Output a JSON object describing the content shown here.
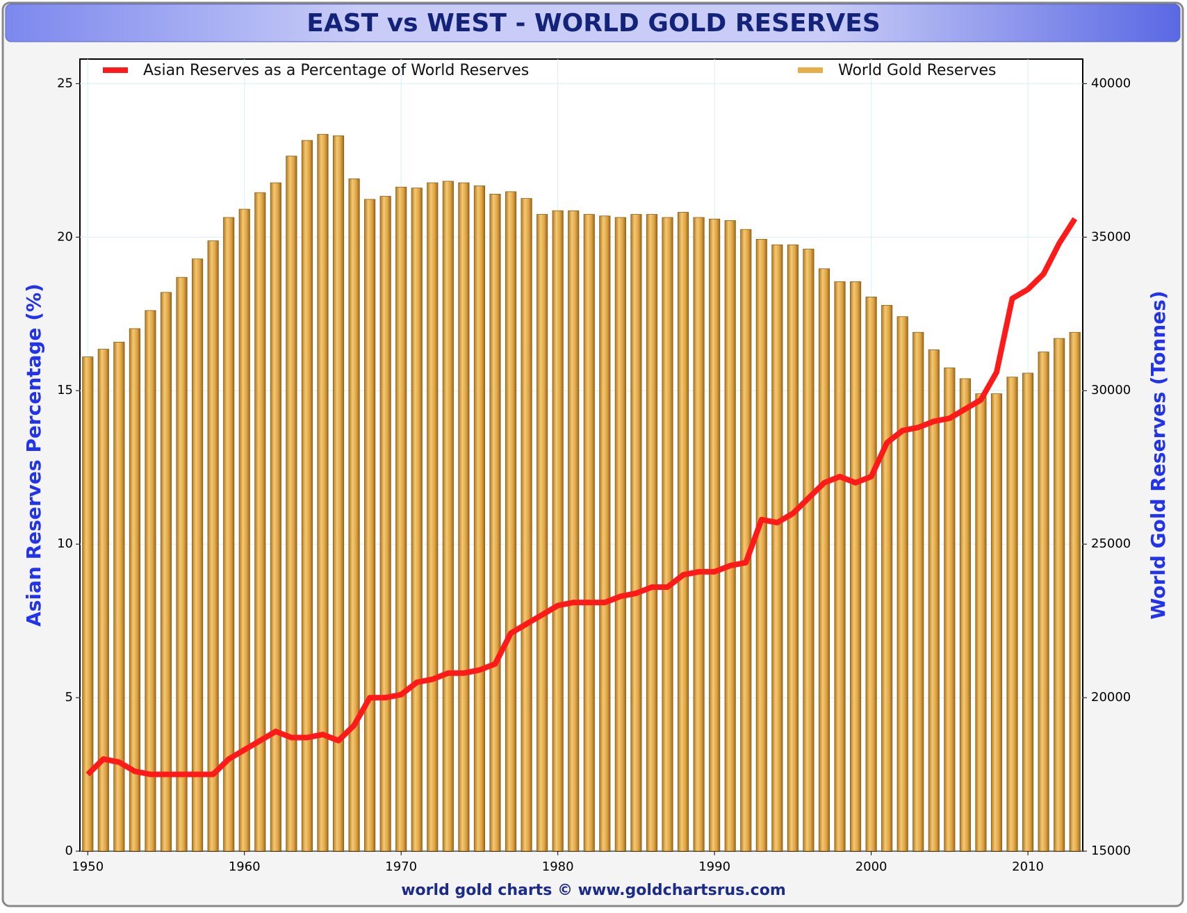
{
  "chart_data": {
    "type": "bar",
    "title": "EAST vs WEST - WORLD GOLD RESERVES",
    "y_label": "Asian Reserves Percentage (%)",
    "y2_label": "World Gold Reserves (Tonnes)",
    "source": "world gold charts © www.goldchartsrus.com",
    "x": [
      1950,
      1951,
      1952,
      1953,
      1954,
      1955,
      1956,
      1957,
      1958,
      1959,
      1960,
      1961,
      1962,
      1963,
      1964,
      1965,
      1966,
      1967,
      1968,
      1969,
      1970,
      1971,
      1972,
      1973,
      1974,
      1975,
      1976,
      1977,
      1978,
      1979,
      1980,
      1981,
      1982,
      1983,
      1984,
      1985,
      1986,
      1987,
      1988,
      1989,
      1990,
      1991,
      1992,
      1993,
      1994,
      1995,
      1996,
      1997,
      1998,
      1999,
      2000,
      2001,
      2002,
      2003,
      2004,
      2005,
      2006,
      2007,
      2008,
      2009,
      2010,
      2011,
      2012,
      2013
    ],
    "xlim": [
      1949.5,
      2013.5
    ],
    "xticks": [
      1950,
      1960,
      1970,
      1980,
      1990,
      2000,
      2010
    ],
    "ylim": [
      0,
      25.8
    ],
    "yticks": [
      0,
      5,
      10,
      15,
      20,
      25
    ],
    "y2lim": [
      15000,
      40800
    ],
    "y2ticks": [
      15000,
      20000,
      25000,
      30000,
      35000,
      40000
    ],
    "grid": true,
    "series": [
      {
        "name": "Asian Reserves as a Percentage of World Reserves",
        "type": "line",
        "color": "#ff1a1a",
        "values": [
          2.5,
          3.0,
          2.9,
          2.6,
          2.5,
          2.5,
          2.5,
          2.5,
          2.5,
          3.0,
          3.3,
          3.6,
          3.9,
          3.7,
          3.7,
          3.8,
          3.6,
          4.1,
          5.0,
          5.0,
          5.1,
          5.5,
          5.6,
          5.8,
          5.8,
          5.9,
          6.1,
          7.1,
          7.4,
          7.7,
          8.0,
          8.1,
          8.1,
          8.1,
          8.3,
          8.4,
          8.6,
          8.6,
          9.0,
          9.1,
          9.1,
          9.3,
          9.4,
          10.8,
          10.7,
          11.0,
          11.5,
          12.0,
          12.2,
          12.0,
          12.2,
          13.3,
          13.7,
          13.8,
          14.0,
          14.1,
          14.4,
          14.7,
          15.6,
          18.0,
          18.3,
          18.8,
          19.8,
          20.6
        ]
      },
      {
        "name": "World Gold Reserves",
        "type": "bar",
        "axis": "y2",
        "color": "#e8ac48",
        "values": [
          31100,
          31350,
          31580,
          32020,
          32610,
          33200,
          33690,
          34290,
          34880,
          35640,
          35910,
          36450,
          36770,
          37640,
          38150,
          38350,
          38300,
          36900,
          36230,
          36330,
          36630,
          36600,
          36770,
          36820,
          36770,
          36670,
          36400,
          36480,
          36260,
          35740,
          35860,
          35860,
          35740,
          35690,
          35640,
          35740,
          35740,
          35640,
          35810,
          35640,
          35590,
          35540,
          35250,
          34930,
          34750,
          34750,
          34610,
          33970,
          33550,
          33550,
          33050,
          32780,
          32410,
          31900,
          31330,
          30740,
          30390,
          29900,
          29900,
          30440,
          30570,
          31260,
          31700,
          31900
        ]
      }
    ]
  }
}
